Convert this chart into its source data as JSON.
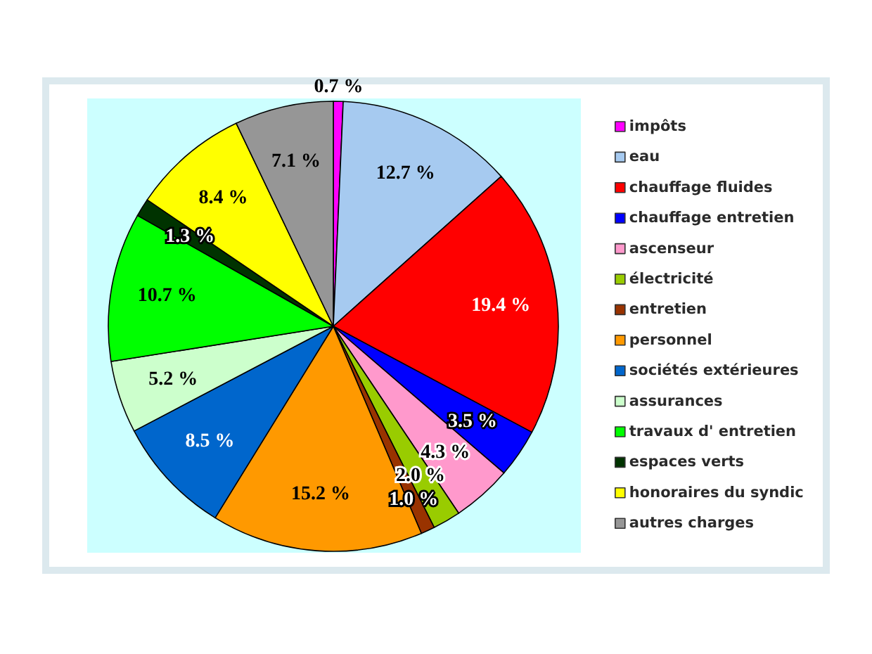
{
  "chart_data": {
    "type": "pie",
    "categories": [
      "impôts",
      "eau",
      "chauffage fluides",
      "chauffage entretien",
      "ascenseur",
      "électricité",
      "entretien",
      "personnel",
      "sociétés extérieures",
      "assurances",
      "travaux d' entretien",
      "espaces verts",
      "honoraires du syndic",
      "autres charges"
    ],
    "values": [
      0.7,
      12.7,
      19.4,
      3.5,
      4.3,
      2.0,
      1.0,
      15.2,
      8.5,
      5.2,
      10.7,
      1.3,
      8.4,
      7.1
    ],
    "colors": [
      "#ff00ff",
      "#a6caf0",
      "#ff0000",
      "#0000ff",
      "#ff99cc",
      "#99cc00",
      "#993300",
      "#ff9900",
      "#0066cc",
      "#ccffcc",
      "#00ff00",
      "#003300",
      "#ffff00",
      "#969696"
    ],
    "value_labels": [
      "0.7 %",
      "12.7 %",
      "19.4 %",
      "3.5 %",
      "4.3 %",
      "2.0 %",
      "1.0 %",
      "15.2 %",
      "8.5 %",
      "5.2 %",
      "10.7 %",
      "1.3 %",
      "8.4 %",
      "7.1 %"
    ],
    "legend": "right"
  }
}
